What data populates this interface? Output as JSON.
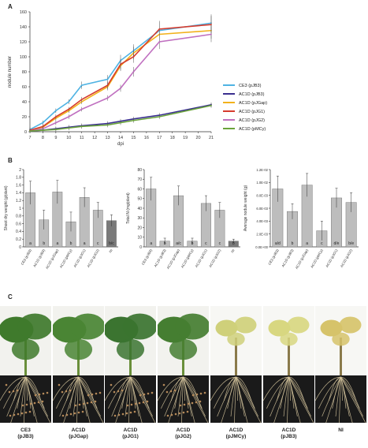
{
  "panels": {
    "a": "A",
    "b": "B",
    "c": "C"
  },
  "chart_data": [
    {
      "type": "line",
      "panel": "A",
      "xlabel": "dpi",
      "ylabel": "nodule number",
      "x": [
        7,
        8,
        9,
        10,
        11,
        12,
        13,
        14,
        15,
        16,
        17,
        18,
        19,
        20,
        21
      ],
      "x_tick_labels": [
        "7",
        "8",
        "9",
        "10",
        "11",
        "12",
        "13",
        "14",
        "15",
        "16",
        "17",
        "18",
        "19",
        "20",
        "21"
      ],
      "ylim": [
        0,
        160
      ],
      "y_ticks": [
        "0",
        "20",
        "40",
        "60",
        "80",
        "100",
        "120",
        "140",
        "160"
      ],
      "legend_position": "right",
      "series": [
        {
          "name": "CE3 (pJB3)",
          "color": "#4fb3e3",
          "x": [
            7,
            8,
            9,
            10,
            11,
            13,
            14,
            15,
            17,
            21
          ],
          "values": [
            3,
            12,
            28,
            40,
            62,
            70,
            95,
            108,
            135,
            145
          ]
        },
        {
          "name": "AC1D (pJB3)",
          "color": "#3a2f8f",
          "x": [
            7,
            8,
            9,
            10,
            11,
            13,
            14,
            15,
            17,
            21
          ],
          "values": [
            1,
            2,
            4,
            6,
            8,
            11,
            14,
            17,
            22,
            36
          ]
        },
        {
          "name": "AC1D (pJGap)",
          "color": "#f2b11b",
          "x": [
            7,
            8,
            9,
            10,
            11,
            13,
            14,
            15,
            17,
            21
          ],
          "values": [
            2,
            6,
            18,
            28,
            40,
            60,
            88,
            105,
            130,
            135
          ]
        },
        {
          "name": "AC1D (pJG1)",
          "color": "#d63b2d",
          "x": [
            7,
            8,
            9,
            10,
            11,
            13,
            14,
            15,
            17,
            21
          ],
          "values": [
            2,
            7,
            20,
            30,
            43,
            62,
            90,
            100,
            137,
            143
          ]
        },
        {
          "name": "AC1D (pJG2)",
          "color": "#c070c0",
          "x": [
            7,
            8,
            9,
            10,
            11,
            13,
            14,
            15,
            17,
            21
          ],
          "values": [
            1,
            4,
            12,
            20,
            30,
            45,
            58,
            80,
            120,
            130
          ]
        },
        {
          "name": "AC1D (pMCy)",
          "color": "#6aa33a",
          "x": [
            7,
            8,
            9,
            10,
            11,
            13,
            14,
            15,
            17,
            21
          ],
          "values": [
            1,
            2,
            3,
            5,
            7,
            9,
            12,
            15,
            20,
            35
          ]
        }
      ]
    },
    {
      "type": "bar",
      "panel": "B1",
      "ylabel": "Shoot dry weight (g/plant)",
      "categories": [
        "CE3 (pJB3)",
        "AC1D (pJB3)",
        "AC1D (pJGap)",
        "AC1D (pMCy)",
        "AC1D (pJG1)",
        "AC1D (pJG2)",
        "NI"
      ],
      "values": [
        1.4,
        0.7,
        1.42,
        0.65,
        1.28,
        0.95,
        0.68
      ],
      "errors": [
        0.3,
        0.25,
        0.3,
        0.25,
        0.25,
        0.2,
        0.15
      ],
      "letters": [
        "a",
        "b",
        "a",
        "b",
        "a",
        "c",
        "b/c"
      ],
      "ylim": [
        0,
        2.0
      ],
      "y_ticks": [
        "0",
        "0.2",
        "0.4",
        "0.6",
        "0.8",
        "1",
        "1.2",
        "1.4",
        "1.6",
        "1.8",
        "2"
      ]
    },
    {
      "type": "bar",
      "panel": "B2",
      "ylabel": "Total N (mg/plant)",
      "categories": [
        "CE3 (pJB3)",
        "AC1D (pJB3)",
        "AC1D (pJGap)",
        "AC1D (pMCy)",
        "AC1D (pJG1)",
        "AC1D (pJG2)",
        "NI"
      ],
      "values": [
        60,
        6,
        53,
        6,
        45,
        38,
        6
      ],
      "errors": [
        12,
        3,
        10,
        3,
        8,
        8,
        2
      ],
      "letters": [
        "a",
        "b",
        "a/c",
        "b",
        "c",
        "c",
        "b"
      ],
      "ylim": [
        0,
        80
      ],
      "y_ticks": [
        "0",
        "10",
        "20",
        "30",
        "40",
        "50",
        "60",
        "70",
        "80"
      ]
    },
    {
      "type": "bar",
      "panel": "B3",
      "ylabel": "Average nodule weight (g)",
      "categories": [
        "CE3 (pJB3)",
        "AC1D (pJB3)",
        "AC1D (pJGap)",
        "AC1D (pMCy)",
        "AC1D (pJG1)",
        "AC1D (pJG2)"
      ],
      "values": [
        0.009,
        0.0055,
        0.0096,
        0.0025,
        0.0076,
        0.0069
      ],
      "errors": [
        0.002,
        0.0012,
        0.0018,
        0.0015,
        0.0015,
        0.0015
      ],
      "letters": [
        "a/d",
        "b",
        "a",
        "c",
        "d/e",
        "b/e"
      ],
      "ylim": [
        0,
        0.012
      ],
      "y_ticks": [
        "0.0E+00",
        "2.0E-03",
        "4.0E-03",
        "6.0E-03",
        "8.0E-03",
        "1.0E-02",
        "1.2E-02"
      ]
    }
  ],
  "photos": {
    "captions": [
      {
        "line1": "CE3",
        "line2": "(pJB3)"
      },
      {
        "line1": "AC1D",
        "line2": "(pJGap)"
      },
      {
        "line1": "AC1D",
        "line2": "(pJG1)"
      },
      {
        "line1": "AC1D",
        "line2": "(pJG2)"
      },
      {
        "line1": "AC1D",
        "line2": "(pJMCy)"
      },
      {
        "line1": "AC1D",
        "line2": "(pJB3)"
      },
      {
        "line1": "NI",
        "line2": ""
      }
    ],
    "leaf_colors": [
      "#3f7a2c",
      "#4a8534",
      "#3b7430",
      "#457e31",
      "#cfd07a",
      "#d8d780",
      "#d6c36a"
    ]
  }
}
